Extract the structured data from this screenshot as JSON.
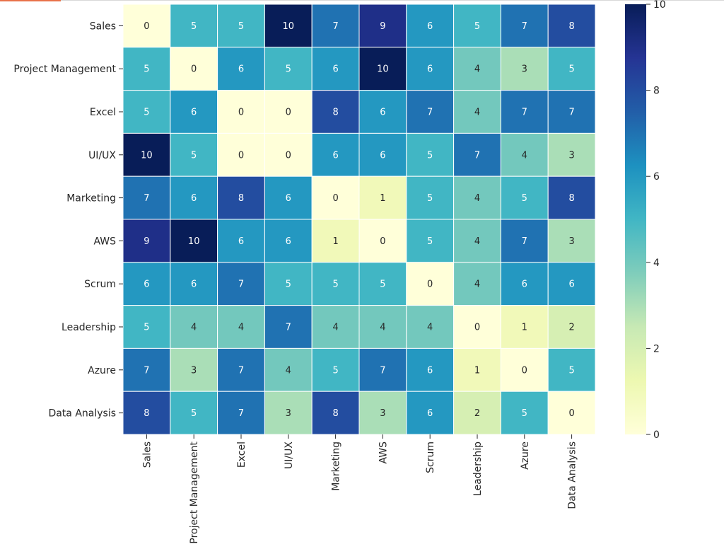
{
  "chart_data": {
    "type": "heatmap",
    "rows": [
      "Sales",
      "Project Management",
      "Excel",
      "UI/UX",
      "Marketing",
      "AWS",
      "Scrum",
      "Leadership",
      "Azure",
      "Data Analysis"
    ],
    "columns": [
      "Sales",
      "Project Management",
      "Excel",
      "UI/UX",
      "Marketing",
      "AWS",
      "Scrum",
      "Leadership",
      "Azure",
      "Data Analysis"
    ],
    "values": [
      [
        0,
        5,
        5,
        10,
        7,
        9,
        6,
        5,
        7,
        8
      ],
      [
        5,
        0,
        6,
        5,
        6,
        10,
        6,
        4,
        3,
        5
      ],
      [
        5,
        6,
        0,
        0,
        8,
        6,
        7,
        4,
        7,
        7
      ],
      [
        10,
        5,
        0,
        0,
        6,
        6,
        5,
        7,
        4,
        3
      ],
      [
        7,
        6,
        8,
        6,
        0,
        1,
        5,
        4,
        5,
        8
      ],
      [
        9,
        10,
        6,
        6,
        1,
        0,
        5,
        4,
        7,
        3
      ],
      [
        6,
        6,
        7,
        5,
        5,
        5,
        0,
        4,
        6,
        6
      ],
      [
        5,
        4,
        4,
        7,
        4,
        4,
        4,
        0,
        1,
        2
      ],
      [
        7,
        3,
        7,
        4,
        5,
        7,
        6,
        1,
        0,
        5
      ],
      [
        8,
        5,
        7,
        3,
        8,
        3,
        6,
        2,
        5,
        0
      ]
    ],
    "colormap": "YlGnBu",
    "colorbar": {
      "range": [
        0,
        10
      ],
      "ticks": [
        "0",
        "2",
        "4",
        "6",
        "8",
        "10"
      ]
    },
    "annotations": true
  }
}
